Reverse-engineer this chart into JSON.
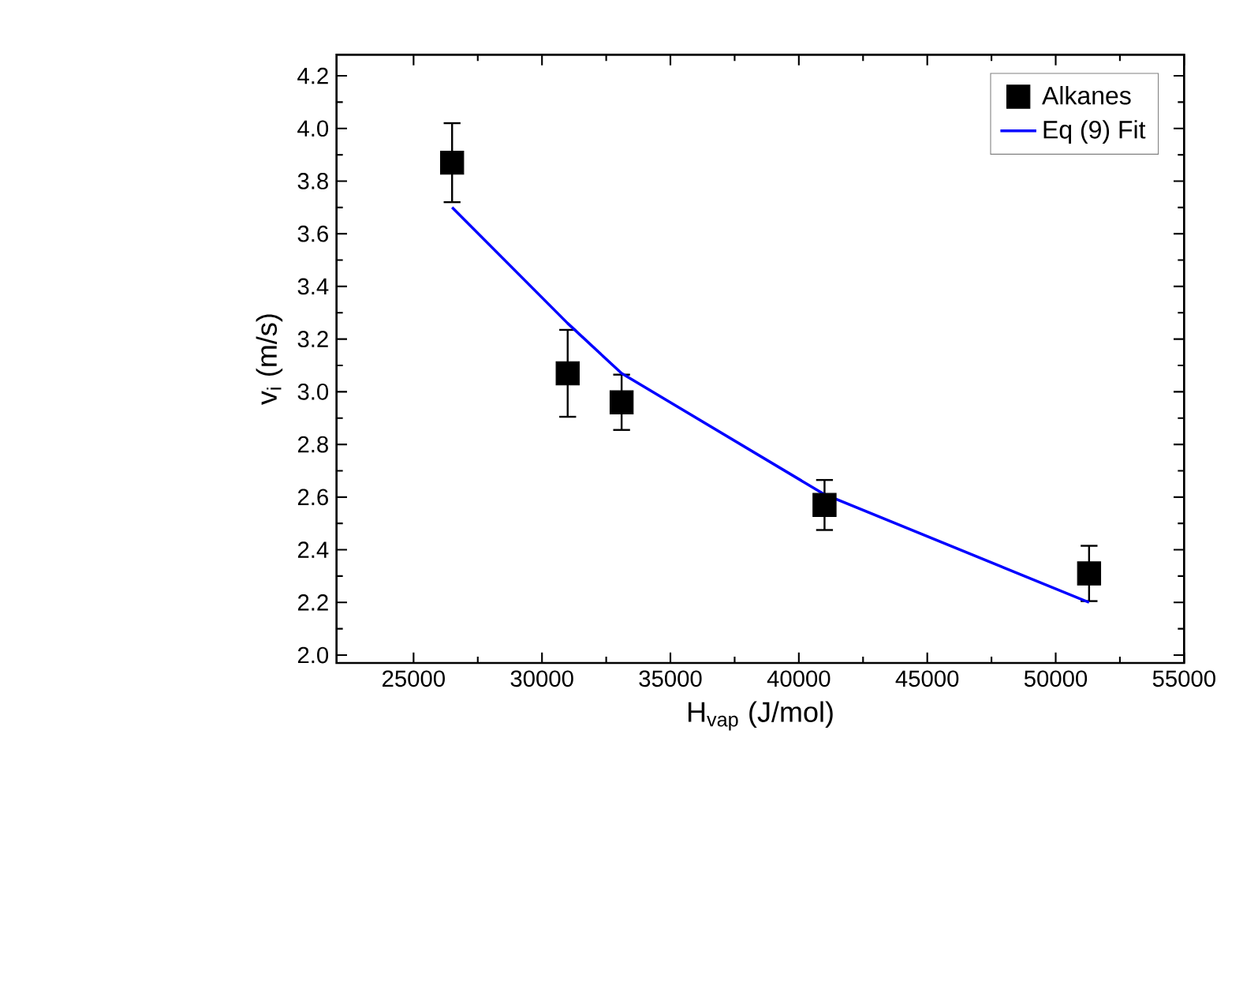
{
  "chart_data": {
    "type": "scatter",
    "xlabel": "H$_{vap}$ (J/mol)",
    "ylabel": "v$_{i}$ (m/s)",
    "xlim": [
      22000,
      55000
    ],
    "xticks": [
      25000,
      30000,
      35000,
      40000,
      45000,
      50000,
      55000
    ],
    "ylim": [
      1.97,
      4.28
    ],
    "yticks": [
      {
        "value": 2.0,
        "label": "2.0"
      },
      {
        "value": 2.2,
        "label": "2.2"
      },
      {
        "value": 2.4,
        "label": "2.4"
      },
      {
        "value": 2.6,
        "label": "2.6"
      },
      {
        "value": 2.8,
        "label": "2.8"
      },
      {
        "value": 3.0,
        "label": "3.0"
      },
      {
        "value": 3.2,
        "label": "3.2"
      },
      {
        "value": 3.4,
        "label": "3.4"
      },
      {
        "value": 3.6,
        "label": "3.6"
      },
      {
        "value": 3.8,
        "label": "3.8"
      },
      {
        "value": 4.0,
        "label": "4.0"
      },
      {
        "value": 4.2,
        "label": "4.2"
      }
    ],
    "legend": "top right",
    "grid": false,
    "series": [
      {
        "name": "Alkanes",
        "marker": "square",
        "color": "#000000",
        "x": [
          26500,
          31000,
          33100,
          41000,
          51300
        ],
        "values": [
          3.87,
          3.07,
          2.96,
          2.57,
          2.31
        ],
        "errors": [
          0.15,
          0.165,
          0.105,
          0.095,
          0.105
        ]
      },
      {
        "name": "Eq (9) Fit",
        "type": "line",
        "marker": "none",
        "line_style": "solid",
        "color": "#0000ff",
        "x": [
          26500,
          31000,
          33100,
          41000,
          51300
        ],
        "values": [
          3.7,
          3.26,
          3.07,
          2.61,
          2.2
        ]
      }
    ]
  }
}
